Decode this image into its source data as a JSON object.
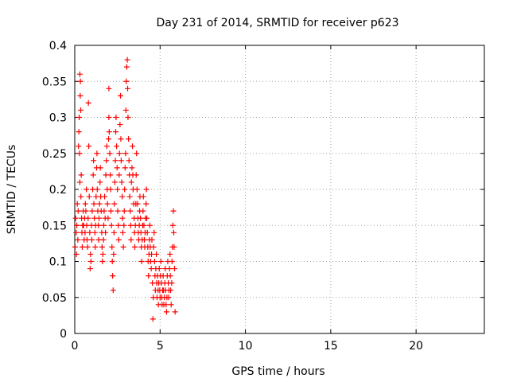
{
  "chart_data": {
    "type": "scatter",
    "title": "Day 231 of 2014, SRMTID for receiver p623",
    "xlabel": "GPS time / hours",
    "ylabel": "SRMTID / TECUs",
    "xlim": [
      0,
      24
    ],
    "ylim": [
      0,
      0.4
    ],
    "x_ticks": [
      0,
      5,
      10,
      15,
      20
    ],
    "x_tick_labels": [
      "0",
      "5",
      "10",
      "15",
      "20"
    ],
    "y_ticks": [
      0,
      0.05,
      0.1,
      0.15,
      0.2,
      0.25,
      0.3,
      0.35,
      0.4
    ],
    "y_tick_labels": [
      "0",
      "0.05",
      "0.1",
      "0.15",
      "0.2",
      "0.25",
      "0.3",
      "0.35",
      "0.4"
    ],
    "grid": true,
    "marker": "plus",
    "color": "#ff0000",
    "series": [
      {
        "points": [
          [
            0.02,
            0.12
          ],
          [
            0.05,
            0.16
          ],
          [
            0.08,
            0.14
          ],
          [
            0.1,
            0.11
          ],
          [
            0.12,
            0.15
          ],
          [
            0.15,
            0.18
          ],
          [
            0.18,
            0.13
          ],
          [
            0.2,
            0.17
          ],
          [
            0.22,
            0.26
          ],
          [
            0.24,
            0.28
          ],
          [
            0.26,
            0.3
          ],
          [
            0.28,
            0.25
          ],
          [
            0.3,
            0.21
          ],
          [
            0.3,
            0.36
          ],
          [
            0.32,
            0.33
          ],
          [
            0.33,
            0.35
          ],
          [
            0.35,
            0.31
          ],
          [
            0.36,
            0.19
          ],
          [
            0.38,
            0.22
          ],
          [
            0.4,
            0.16
          ],
          [
            0.42,
            0.14
          ],
          [
            0.44,
            0.12
          ],
          [
            0.46,
            0.15
          ],
          [
            0.5,
            0.17
          ],
          [
            0.52,
            0.15
          ],
          [
            0.55,
            0.13
          ],
          [
            0.58,
            0.16
          ],
          [
            0.6,
            0.14
          ],
          [
            0.62,
            0.18
          ],
          [
            0.65,
            0.17
          ],
          [
            0.68,
            0.2
          ],
          [
            0.7,
            0.15
          ],
          [
            0.72,
            0.13
          ],
          [
            0.75,
            0.12
          ],
          [
            0.78,
            0.16
          ],
          [
            0.8,
            0.32
          ],
          [
            0.82,
            0.26
          ],
          [
            0.85,
            0.19
          ],
          [
            0.88,
            0.14
          ],
          [
            0.9,
            0.09
          ],
          [
            0.92,
            0.11
          ],
          [
            0.95,
            0.1
          ],
          [
            0.98,
            0.15
          ],
          [
            1.0,
            0.13
          ],
          [
            1.02,
            0.17
          ],
          [
            1.05,
            0.2
          ],
          [
            1.08,
            0.22
          ],
          [
            1.1,
            0.24
          ],
          [
            1.12,
            0.18
          ],
          [
            1.15,
            0.16
          ],
          [
            1.18,
            0.14
          ],
          [
            1.2,
            0.12
          ],
          [
            1.22,
            0.15
          ],
          [
            1.25,
            0.19
          ],
          [
            1.28,
            0.23
          ],
          [
            1.3,
            0.25
          ],
          [
            1.32,
            0.2
          ],
          [
            1.35,
            0.17
          ],
          [
            1.38,
            0.15
          ],
          [
            1.4,
            0.13
          ],
          [
            1.42,
            0.16
          ],
          [
            1.45,
            0.18
          ],
          [
            1.48,
            0.21
          ],
          [
            1.5,
            0.23
          ],
          [
            1.52,
            0.19
          ],
          [
            1.55,
            0.17
          ],
          [
            1.58,
            0.14
          ],
          [
            1.6,
            0.12
          ],
          [
            1.62,
            0.1
          ],
          [
            1.65,
            0.11
          ],
          [
            1.68,
            0.13
          ],
          [
            1.7,
            0.15
          ],
          [
            1.72,
            0.17
          ],
          [
            1.75,
            0.19
          ],
          [
            1.78,
            0.16
          ],
          [
            1.8,
            0.14
          ],
          [
            1.82,
            0.22
          ],
          [
            1.85,
            0.24
          ],
          [
            1.88,
            0.26
          ],
          [
            1.9,
            0.2
          ],
          [
            1.92,
            0.18
          ],
          [
            1.95,
            0.16
          ],
          [
            1.98,
            0.27
          ],
          [
            2.0,
            0.3
          ],
          [
            2.0,
            0.34
          ],
          [
            2.02,
            0.28
          ],
          [
            2.05,
            0.25
          ],
          [
            2.08,
            0.22
          ],
          [
            2.1,
            0.2
          ],
          [
            2.12,
            0.17
          ],
          [
            2.15,
            0.15
          ],
          [
            2.18,
            0.12
          ],
          [
            2.2,
            0.1
          ],
          [
            2.22,
            0.08
          ],
          [
            2.25,
            0.06
          ],
          [
            2.28,
            0.11
          ],
          [
            2.3,
            0.14
          ],
          [
            2.32,
            0.18
          ],
          [
            2.35,
            0.21
          ],
          [
            2.38,
            0.24
          ],
          [
            2.4,
            0.28
          ],
          [
            2.42,
            0.3
          ],
          [
            2.45,
            0.26
          ],
          [
            2.48,
            0.23
          ],
          [
            2.5,
            0.2
          ],
          [
            2.52,
            0.17
          ],
          [
            2.55,
            0.15
          ],
          [
            2.58,
            0.13
          ],
          [
            2.6,
            0.22
          ],
          [
            2.62,
            0.25
          ],
          [
            2.65,
            0.29
          ],
          [
            2.68,
            0.33
          ],
          [
            2.7,
            0.27
          ],
          [
            2.72,
            0.24
          ],
          [
            2.75,
            0.21
          ],
          [
            2.78,
            0.19
          ],
          [
            2.8,
            0.16
          ],
          [
            2.82,
            0.14
          ],
          [
            2.85,
            0.12
          ],
          [
            2.88,
            0.15
          ],
          [
            2.9,
            0.17
          ],
          [
            2.92,
            0.2
          ],
          [
            2.95,
            0.23
          ],
          [
            2.98,
            0.25
          ],
          [
            3.0,
            0.31
          ],
          [
            3.02,
            0.35
          ],
          [
            3.05,
            0.37
          ],
          [
            3.08,
            0.38
          ],
          [
            3.1,
            0.34
          ],
          [
            3.12,
            0.3
          ],
          [
            3.15,
            0.27
          ],
          [
            3.18,
            0.24
          ],
          [
            3.2,
            0.22
          ],
          [
            3.22,
            0.19
          ],
          [
            3.25,
            0.17
          ],
          [
            3.28,
            0.15
          ],
          [
            3.3,
            0.13
          ],
          [
            3.32,
            0.21
          ],
          [
            3.35,
            0.23
          ],
          [
            3.38,
            0.26
          ],
          [
            3.4,
            0.22
          ],
          [
            3.42,
            0.2
          ],
          [
            3.45,
            0.18
          ],
          [
            3.48,
            0.16
          ],
          [
            3.5,
            0.14
          ],
          [
            3.52,
            0.12
          ],
          [
            3.55,
            0.15
          ],
          [
            3.58,
            0.18
          ],
          [
            3.6,
            0.22
          ],
          [
            3.62,
            0.25
          ],
          [
            3.65,
            0.2
          ],
          [
            3.68,
            0.18
          ],
          [
            3.7,
            0.16
          ],
          [
            3.72,
            0.14
          ],
          [
            3.75,
            0.13
          ],
          [
            3.78,
            0.15
          ],
          [
            3.8,
            0.17
          ],
          [
            3.82,
            0.19
          ],
          [
            3.85,
            0.16
          ],
          [
            3.88,
            0.14
          ],
          [
            3.9,
            0.12
          ],
          [
            3.92,
            0.1
          ],
          [
            3.95,
            0.13
          ],
          [
            3.98,
            0.15
          ],
          [
            4.0,
            0.17
          ],
          [
            4.02,
            0.19
          ],
          [
            4.05,
            0.15
          ],
          [
            4.08,
            0.13
          ],
          [
            4.1,
            0.12
          ],
          [
            4.12,
            0.14
          ],
          [
            4.15,
            0.16
          ],
          [
            4.18,
            0.18
          ],
          [
            4.2,
            0.2
          ],
          [
            4.22,
            0.16
          ],
          [
            4.25,
            0.14
          ],
          [
            4.28,
            0.12
          ],
          [
            4.3,
            0.1
          ],
          [
            4.32,
            0.08
          ],
          [
            4.35,
            0.11
          ],
          [
            4.38,
            0.13
          ],
          [
            4.4,
            0.15
          ],
          [
            4.42,
            0.12
          ],
          [
            4.45,
            0.1
          ],
          [
            4.48,
            0.09
          ],
          [
            4.5,
            0.11
          ],
          [
            4.52,
            0.13
          ],
          [
            4.55,
            0.07
          ],
          [
            4.58,
            0.02
          ],
          [
            4.6,
            0.05
          ],
          [
            4.62,
            0.12
          ],
          [
            4.65,
            0.14
          ],
          [
            4.68,
            0.1
          ],
          [
            4.7,
            0.08
          ],
          [
            4.72,
            0.06
          ],
          [
            4.75,
            0.09
          ],
          [
            4.78,
            0.11
          ],
          [
            4.8,
            0.07
          ],
          [
            4.82,
            0.05
          ],
          [
            4.85,
            0.08
          ],
          [
            4.88,
            0.06
          ],
          [
            4.9,
            0.04
          ],
          [
            4.92,
            0.07
          ],
          [
            4.95,
            0.09
          ],
          [
            4.98,
            0.06
          ],
          [
            5.0,
            0.05
          ],
          [
            5.02,
            0.08
          ],
          [
            5.05,
            0.1
          ],
          [
            5.08,
            0.07
          ],
          [
            5.1,
            0.05
          ],
          [
            5.12,
            0.04
          ],
          [
            5.15,
            0.06
          ],
          [
            5.18,
            0.08
          ],
          [
            5.2,
            0.06
          ],
          [
            5.22,
            0.04
          ],
          [
            5.25,
            0.05
          ],
          [
            5.28,
            0.07
          ],
          [
            5.3,
            0.09
          ],
          [
            5.32,
            0.06
          ],
          [
            5.35,
            0.04
          ],
          [
            5.38,
            0.03
          ],
          [
            5.4,
            0.05
          ],
          [
            5.42,
            0.08
          ],
          [
            5.45,
            0.1
          ],
          [
            5.48,
            0.07
          ],
          [
            5.5,
            0.05
          ],
          [
            5.52,
            0.06
          ],
          [
            5.55,
            0.09
          ],
          [
            5.58,
            0.11
          ],
          [
            5.6,
            0.08
          ],
          [
            5.62,
            0.06
          ],
          [
            5.65,
            0.04
          ],
          [
            5.68,
            0.07
          ],
          [
            5.7,
            0.1
          ],
          [
            5.72,
            0.12
          ],
          [
            5.75,
            0.15
          ],
          [
            5.78,
            0.17
          ],
          [
            5.8,
            0.14
          ],
          [
            5.82,
            0.12
          ],
          [
            5.85,
            0.09
          ],
          [
            5.88,
            0.03
          ]
        ]
      }
    ]
  }
}
